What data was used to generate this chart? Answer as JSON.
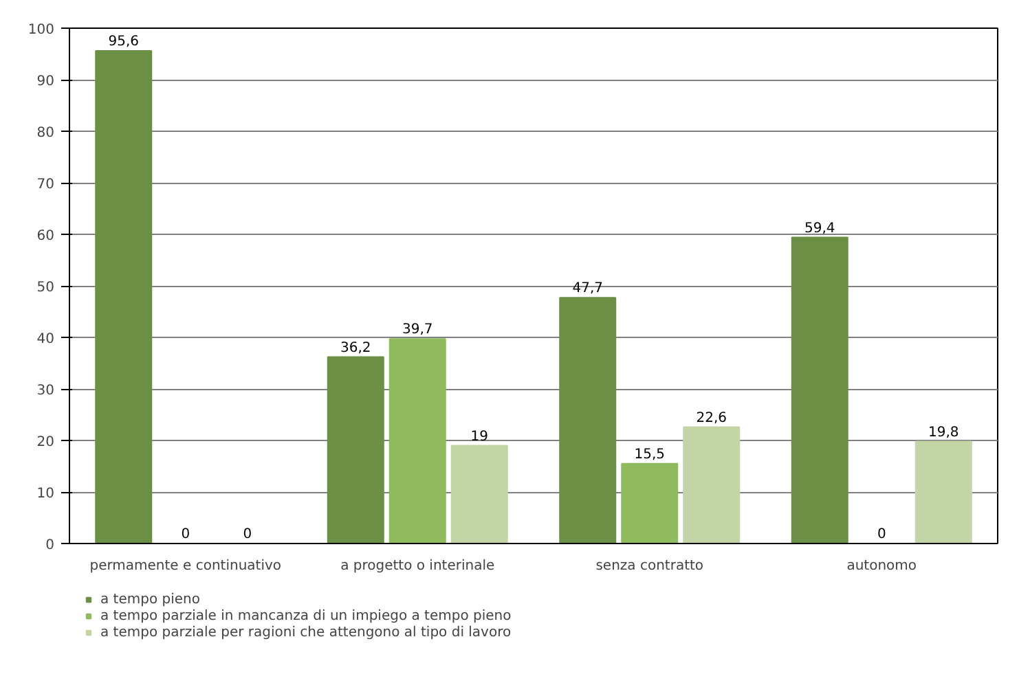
{
  "chart_data": {
    "type": "bar",
    "categories": [
      "permamente e continuativo",
      "a progetto o interinale",
      "senza contratto",
      "autonomo"
    ],
    "series": [
      {
        "name": "a tempo pieno",
        "color": "#6b8f45",
        "values": [
          95.6,
          36.2,
          47.7,
          59.4
        ],
        "value_labels": [
          "95,6",
          "36,2",
          "47,7",
          "59,4"
        ]
      },
      {
        "name": "a tempo parziale in mancanza di un impiego a tempo pieno",
        "color": "#8fba5e",
        "values": [
          0,
          39.7,
          15.5,
          0
        ],
        "value_labels": [
          "0",
          "39,7",
          "15,5",
          "0"
        ]
      },
      {
        "name": "a tempo parziale per ragioni che attengono al tipo di lavoro",
        "color": "#c3d5a6",
        "values": [
          0,
          19,
          22.6,
          19.8
        ],
        "value_labels": [
          "0",
          "19",
          "22,6",
          "19,8"
        ]
      }
    ],
    "ylim": [
      0,
      100
    ],
    "yticks": [
      0,
      10,
      20,
      30,
      40,
      50,
      60,
      70,
      80,
      90,
      100
    ],
    "grid": "y",
    "legend": "bottom"
  }
}
